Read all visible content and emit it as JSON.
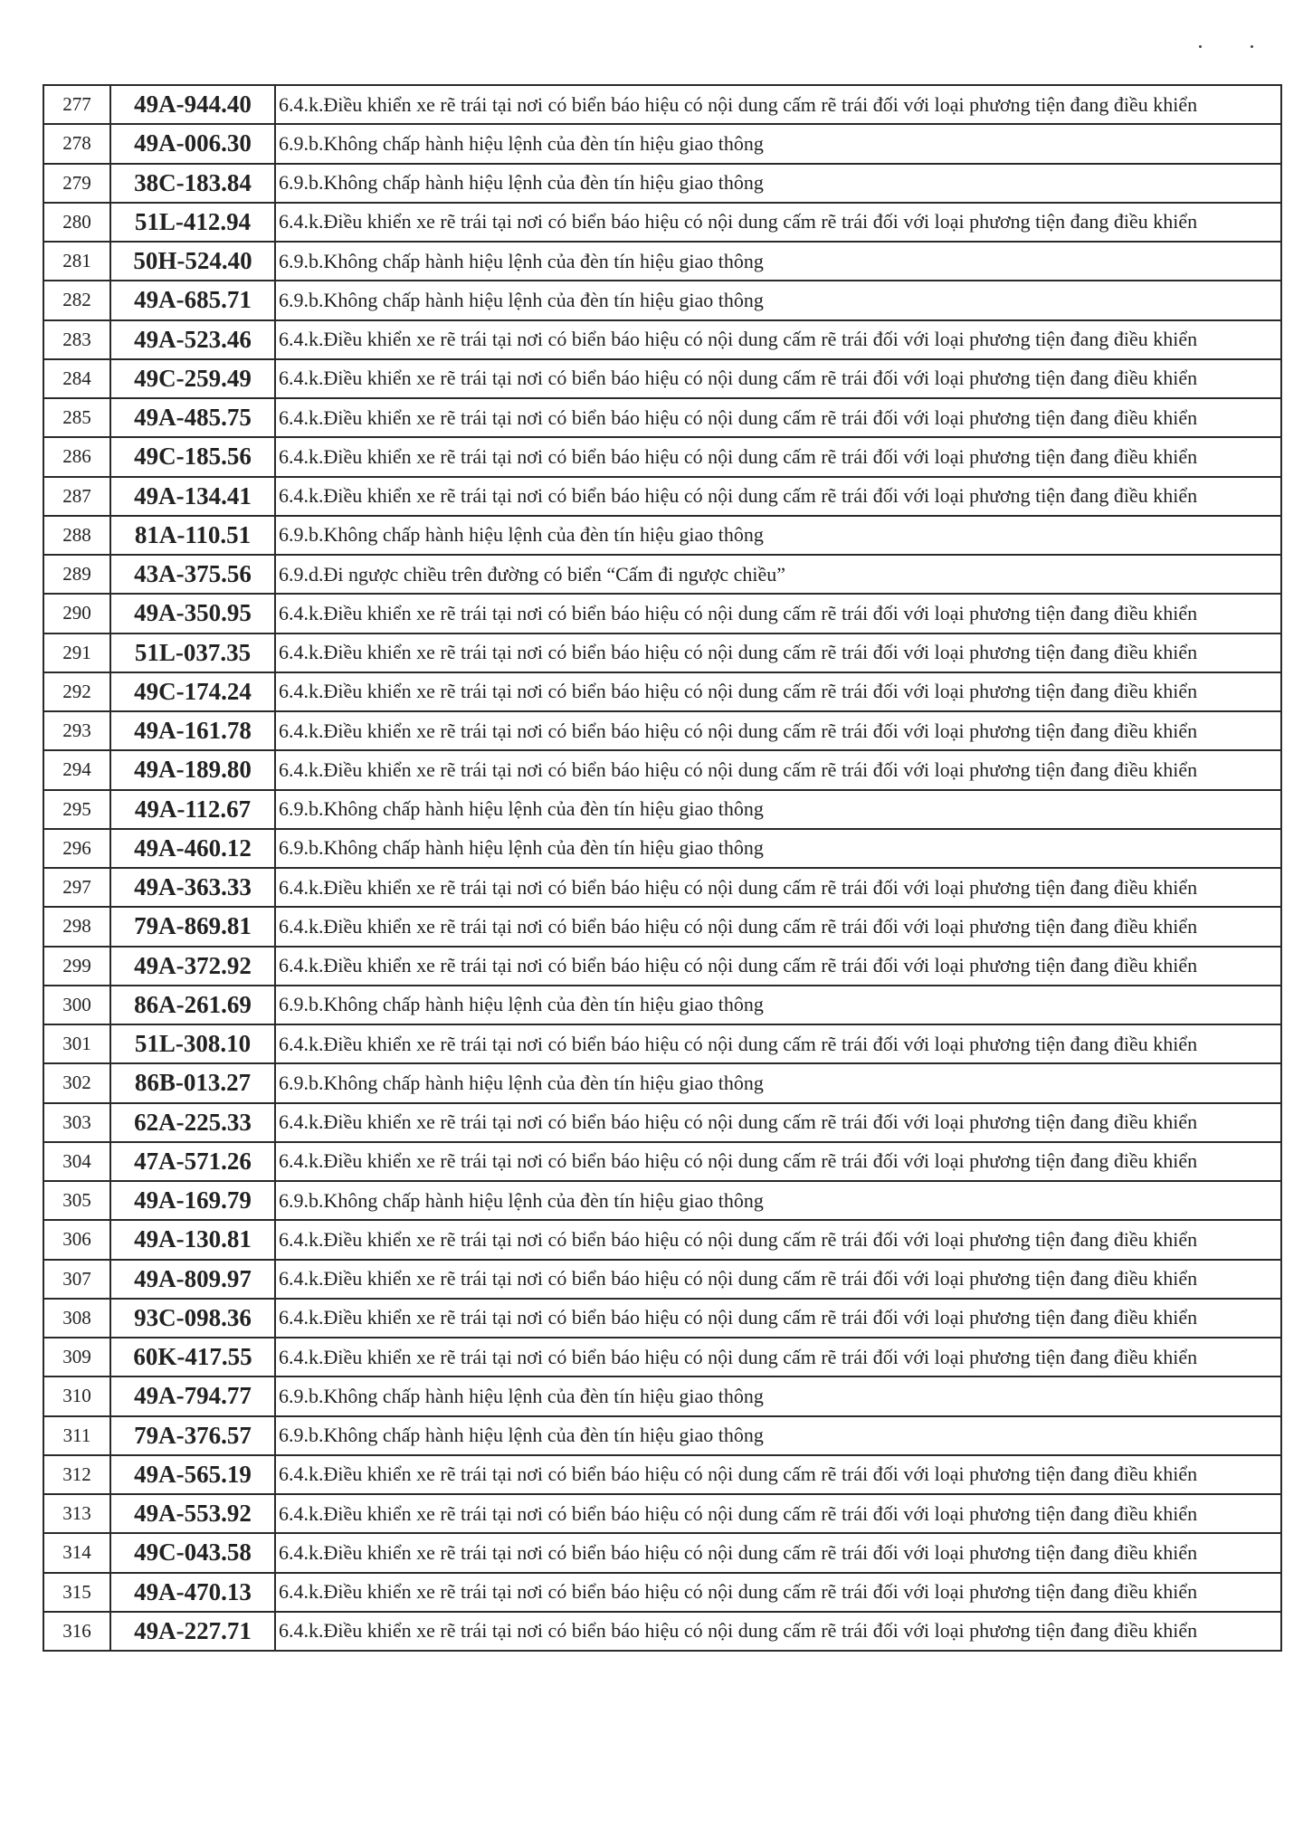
{
  "violations": {
    "6.4.k": "6.4.k.Điều khiển xe rẽ trái tại nơi có biển báo hiệu có nội dung cấm rẽ trái đối với loại phương tiện đang điều khiển",
    "6.9.b": "6.9.b.Không chấp hành hiệu lệnh của đèn tín hiệu giao thông",
    "6.9.d": "6.9.d.Đi ngược chiều trên đường có biển “Cấm đi ngược chiều”"
  },
  "rows": [
    {
      "no": "277",
      "plate": "49A-944.40",
      "code": "6.4.k"
    },
    {
      "no": "278",
      "plate": "49A-006.30",
      "code": "6.9.b"
    },
    {
      "no": "279",
      "plate": "38C-183.84",
      "code": "6.9.b"
    },
    {
      "no": "280",
      "plate": "51L-412.94",
      "code": "6.4.k"
    },
    {
      "no": "281",
      "plate": "50H-524.40",
      "code": "6.9.b"
    },
    {
      "no": "282",
      "plate": "49A-685.71",
      "code": "6.9.b"
    },
    {
      "no": "283",
      "plate": "49A-523.46",
      "code": "6.4.k"
    },
    {
      "no": "284",
      "plate": "49C-259.49",
      "code": "6.4.k"
    },
    {
      "no": "285",
      "plate": "49A-485.75",
      "code": "6.4.k"
    },
    {
      "no": "286",
      "plate": "49C-185.56",
      "code": "6.4.k"
    },
    {
      "no": "287",
      "plate": "49A-134.41",
      "code": "6.4.k"
    },
    {
      "no": "288",
      "plate": "81A-110.51",
      "code": "6.9.b"
    },
    {
      "no": "289",
      "plate": "43A-375.56",
      "code": "6.9.d"
    },
    {
      "no": "290",
      "plate": "49A-350.95",
      "code": "6.4.k"
    },
    {
      "no": "291",
      "plate": "51L-037.35",
      "code": "6.4.k"
    },
    {
      "no": "292",
      "plate": "49C-174.24",
      "code": "6.4.k"
    },
    {
      "no": "293",
      "plate": "49A-161.78",
      "code": "6.4.k"
    },
    {
      "no": "294",
      "plate": "49A-189.80",
      "code": "6.4.k"
    },
    {
      "no": "295",
      "plate": "49A-112.67",
      "code": "6.9.b"
    },
    {
      "no": "296",
      "plate": "49A-460.12",
      "code": "6.9.b"
    },
    {
      "no": "297",
      "plate": "49A-363.33",
      "code": "6.4.k"
    },
    {
      "no": "298",
      "plate": "79A-869.81",
      "code": "6.4.k"
    },
    {
      "no": "299",
      "plate": "49A-372.92",
      "code": "6.4.k"
    },
    {
      "no": "300",
      "plate": "86A-261.69",
      "code": "6.9.b"
    },
    {
      "no": "301",
      "plate": "51L-308.10",
      "code": "6.4.k"
    },
    {
      "no": "302",
      "plate": "86B-013.27",
      "code": "6.9.b"
    },
    {
      "no": "303",
      "plate": "62A-225.33",
      "code": "6.4.k"
    },
    {
      "no": "304",
      "plate": "47A-571.26",
      "code": "6.4.k"
    },
    {
      "no": "305",
      "plate": "49A-169.79",
      "code": "6.9.b"
    },
    {
      "no": "306",
      "plate": "49A-130.81",
      "code": "6.4.k"
    },
    {
      "no": "307",
      "plate": "49A-809.97",
      "code": "6.4.k"
    },
    {
      "no": "308",
      "plate": "93C-098.36",
      "code": "6.4.k"
    },
    {
      "no": "309",
      "plate": "60K-417.55",
      "code": "6.4.k"
    },
    {
      "no": "310",
      "plate": "49A-794.77",
      "code": "6.9.b"
    },
    {
      "no": "311",
      "plate": "79A-376.57",
      "code": "6.9.b"
    },
    {
      "no": "312",
      "plate": "49A-565.19",
      "code": "6.4.k"
    },
    {
      "no": "313",
      "plate": "49A-553.92",
      "code": "6.4.k"
    },
    {
      "no": "314",
      "plate": "49C-043.58",
      "code": "6.4.k"
    },
    {
      "no": "315",
      "plate": "49A-470.13",
      "code": "6.4.k"
    },
    {
      "no": "316",
      "plate": "49A-227.71",
      "code": "6.4.k"
    }
  ]
}
